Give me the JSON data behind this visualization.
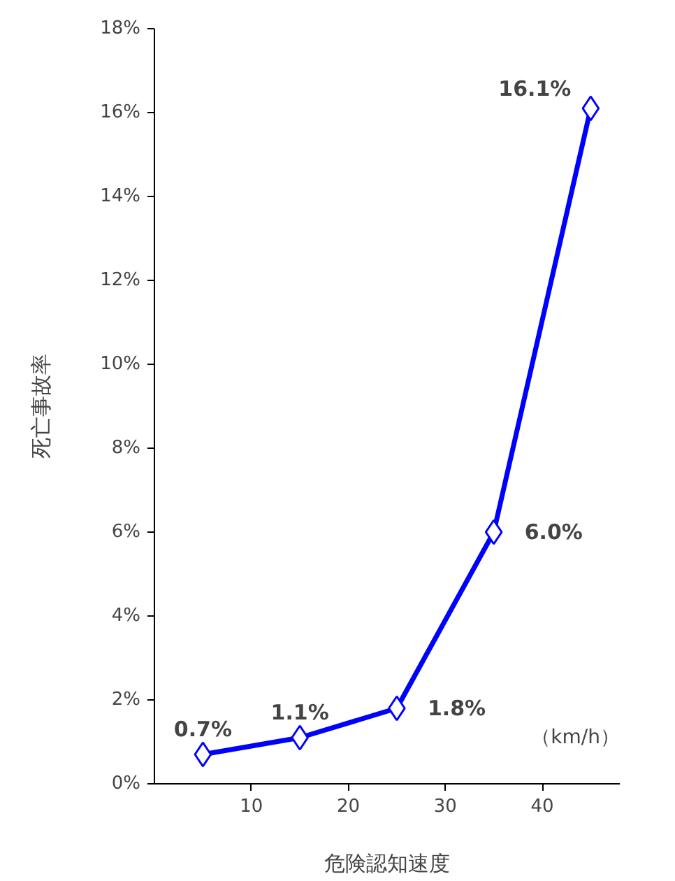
{
  "chart_data": {
    "type": "line",
    "xlabel": "危険認知速度",
    "ylabel": "死亡事故率",
    "x": [
      5,
      15,
      25,
      35,
      45
    ],
    "series": [
      {
        "color": "#0000ff",
        "values": [
          0.7,
          1.1,
          1.8,
          6.0,
          16.1
        ],
        "value_labels": [
          "0.7%",
          "1.1%",
          "1.8%",
          "6.0%",
          "16.1%"
        ]
      }
    ],
    "xlim": [
      0,
      48
    ],
    "xticks": [
      10,
      20,
      30,
      40
    ],
    "ylim": [
      0,
      18
    ],
    "yticks": [
      {
        "value": 0,
        "label": "0%"
      },
      {
        "value": 2,
        "label": "2%"
      },
      {
        "value": 4,
        "label": "4%"
      },
      {
        "value": 6,
        "label": "6%"
      },
      {
        "value": 8,
        "label": "8%"
      },
      {
        "value": 10,
        "label": "10%"
      },
      {
        "value": 12,
        "label": "12%"
      },
      {
        "value": 14,
        "label": "14%"
      },
      {
        "value": 16,
        "label": "16%"
      },
      {
        "value": 18,
        "label": "18%"
      }
    ],
    "annotations": [
      "（km/h）"
    ],
    "marker": "diamond",
    "line_style": "solid",
    "grid": false
  }
}
